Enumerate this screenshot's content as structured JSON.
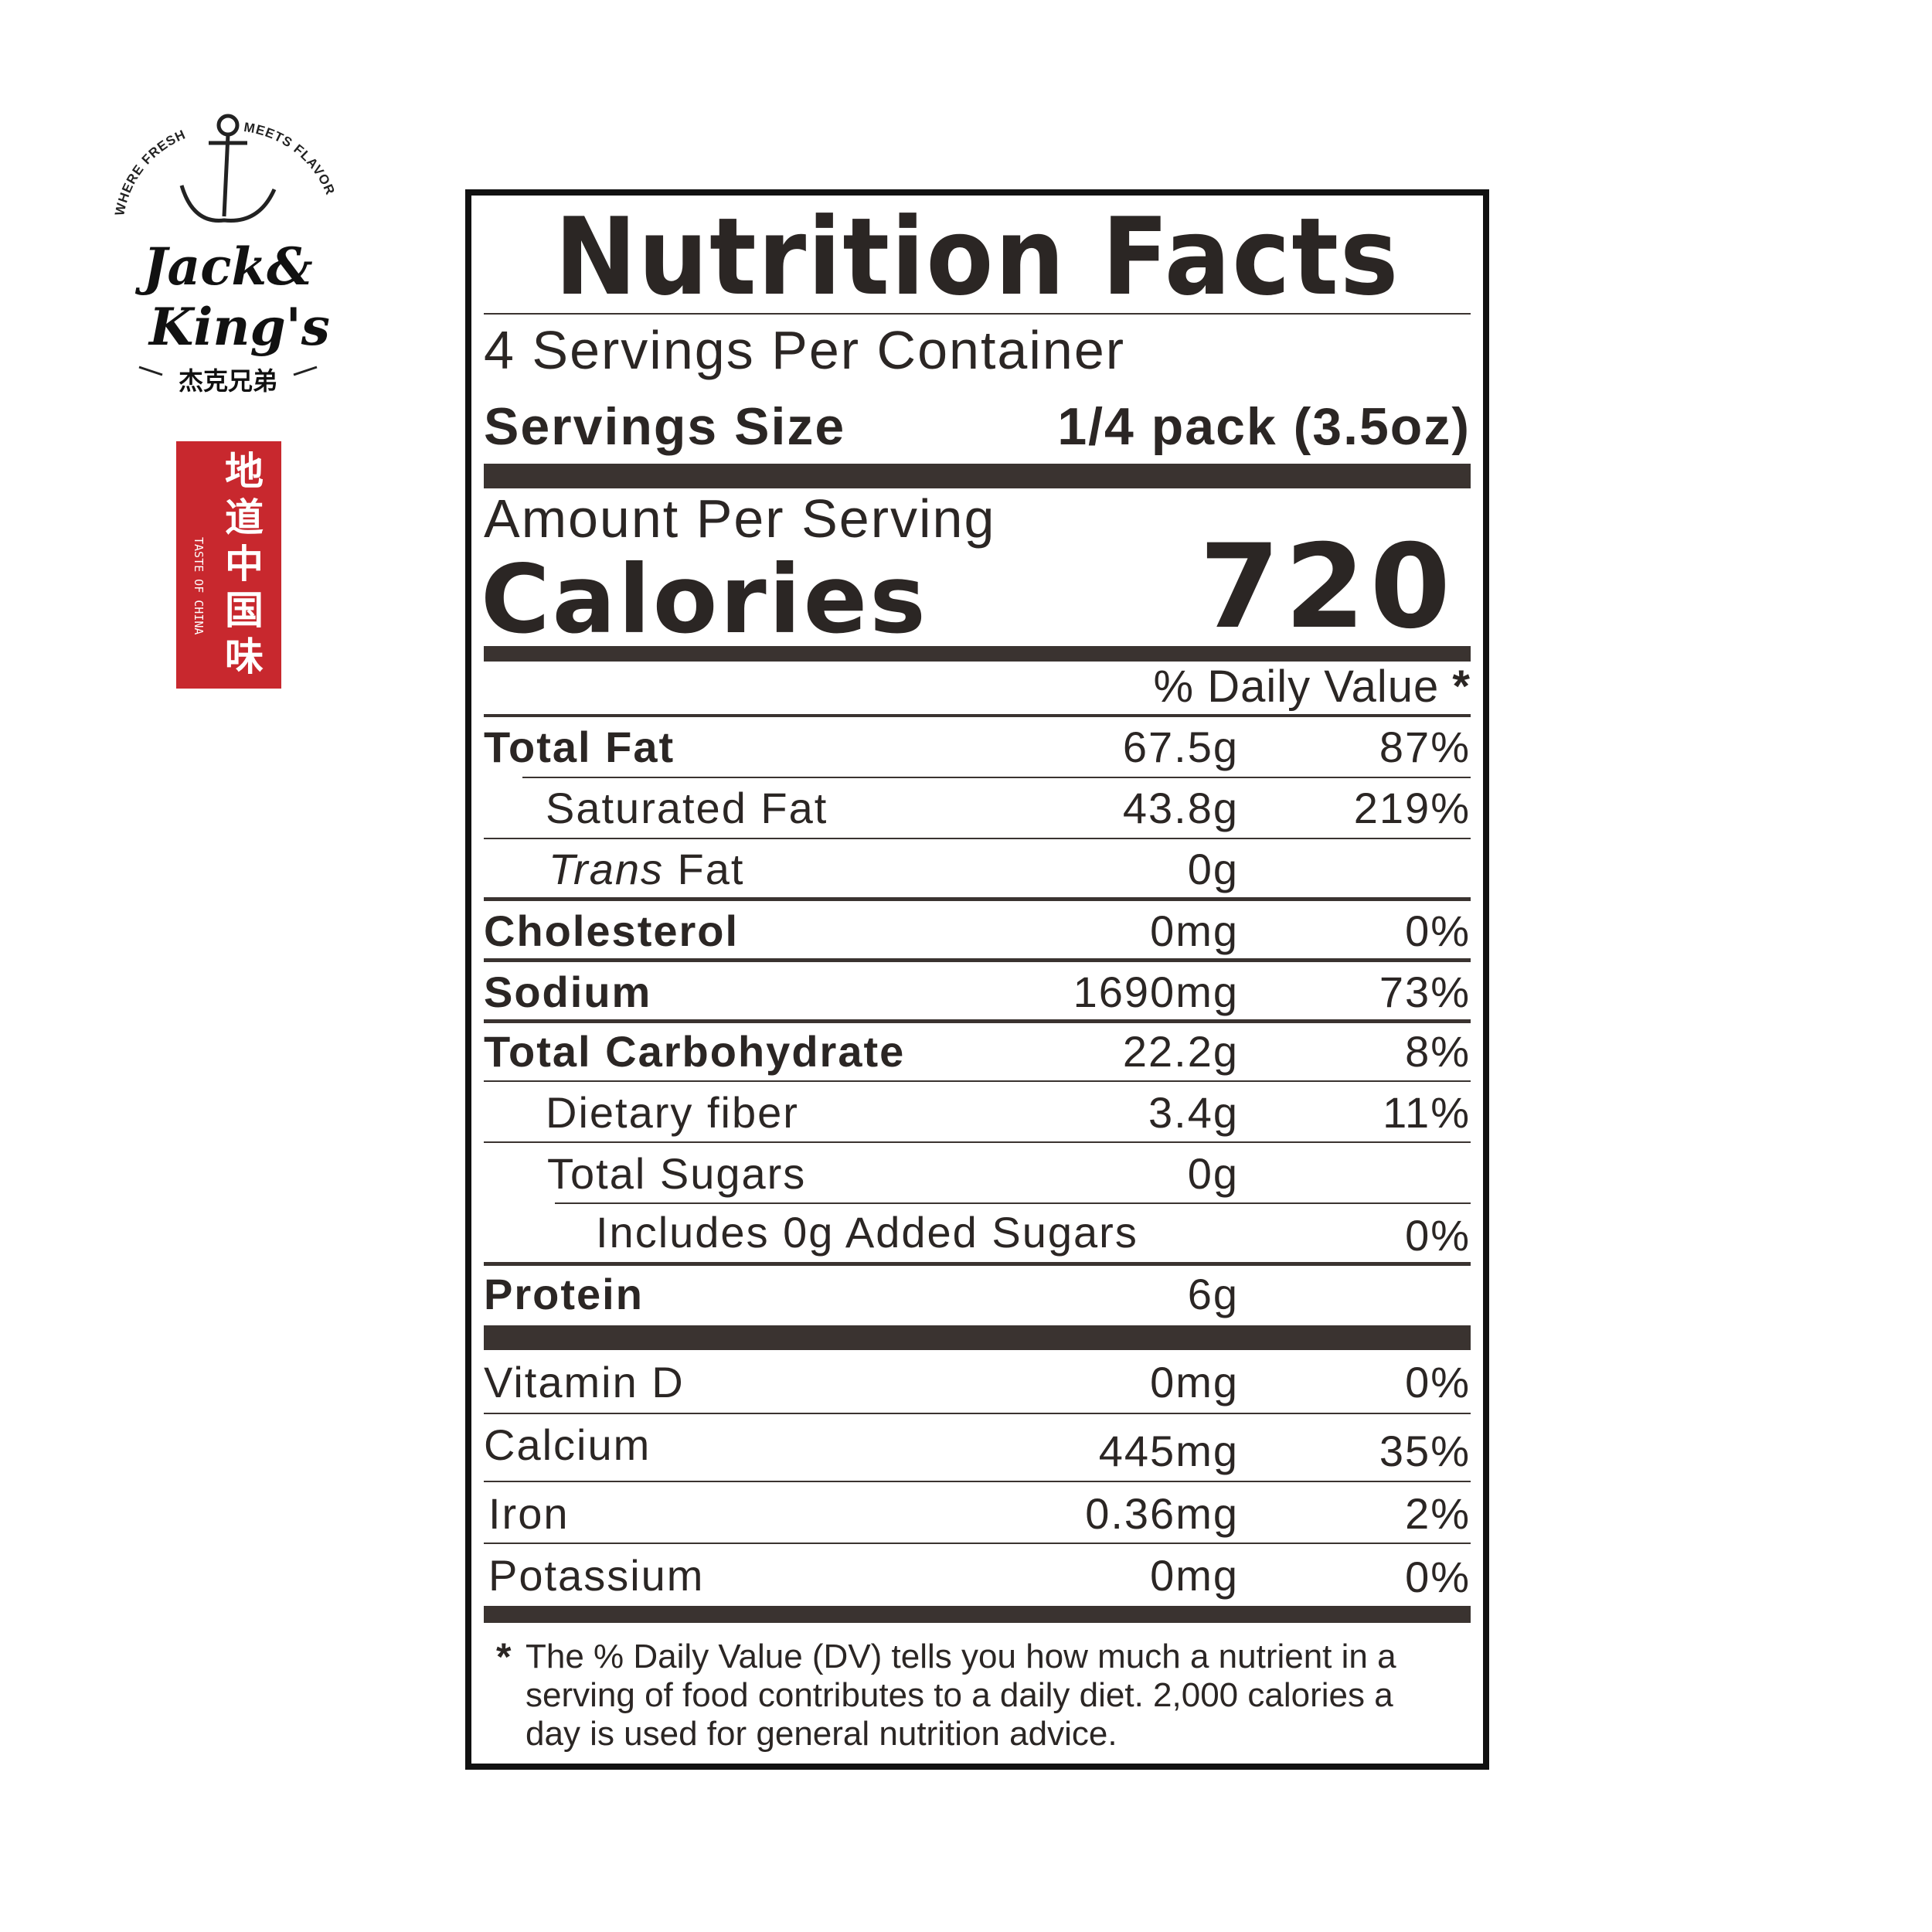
{
  "brand": {
    "name": "Jack & King's",
    "tagline_left": "WHERE FRESH",
    "tagline_right": "MEETS FLAVOR",
    "chinese_name": "杰克兄弟",
    "seal_text": "地道中国味",
    "seal_english": "TASTE OF CHINA",
    "seal_color": "#c8282e"
  },
  "label": {
    "title": "Nutrition Facts",
    "servings_per_container": "4 Servings Per Container",
    "serving_size_label": "Servings Size",
    "serving_size_value": "1/4 pack (3.5oz)",
    "amount_per_serving": "Amount Per Serving",
    "calories_label": "Calories",
    "calories_value": "720",
    "dv_header": "% Daily Value",
    "dv_star": "*",
    "rows": [
      {
        "label": "Total Fat",
        "amount": "67.5g",
        "dv": "87%"
      },
      {
        "label": "Saturated Fat",
        "amount": "43.8g",
        "dv": "219%"
      },
      {
        "label_italic": "Trans",
        "label": " Fat",
        "amount": "0g",
        "dv": ""
      },
      {
        "label": "Cholesterol",
        "amount": "0mg",
        "dv": "0%"
      },
      {
        "label": "Sodium",
        "amount": "1690mg",
        "dv": "73%"
      },
      {
        "label": "Total Carbohydrate",
        "amount": "22.2g",
        "dv": "8%"
      },
      {
        "label": "Dietary fiber",
        "amount": "3.4g",
        "dv": "11%"
      },
      {
        "label": "Total Sugars",
        "amount": "0g",
        "dv": ""
      },
      {
        "label": "Includes 0g Added Sugars",
        "amount": "",
        "dv": "0%"
      },
      {
        "label": "Protein",
        "amount": "6g",
        "dv": ""
      }
    ],
    "vitamins": [
      {
        "label": "Vitamin D",
        "amount": "0mg",
        "dv": "0%"
      },
      {
        "label": "Calcium",
        "amount": "445mg",
        "dv": "35%"
      },
      {
        "label": "Iron",
        "amount": "0.36mg",
        "dv": "2%"
      },
      {
        "label": "Potassium",
        "amount": "0mg",
        "dv": "0%"
      }
    ],
    "footnote_star": "*",
    "footnote": "The % Daily Value (DV) tells you how much a nutrient in a serving of food contributes to a daily diet. 2,000 calories a day is used for general nutrition advice."
  }
}
